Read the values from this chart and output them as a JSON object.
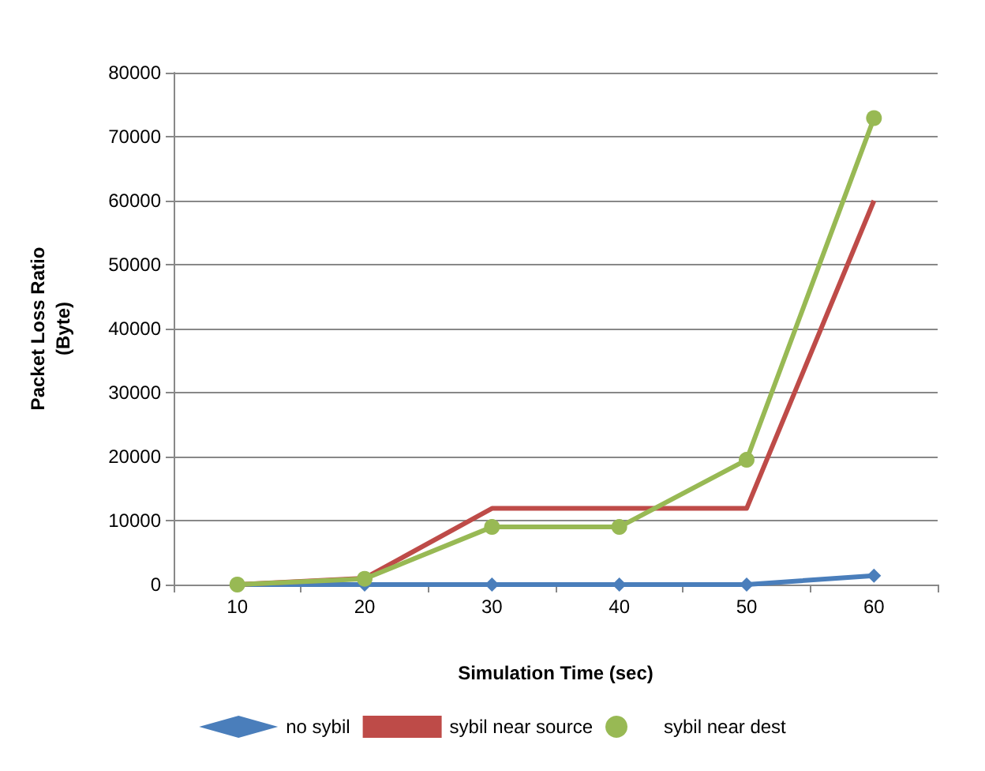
{
  "chart_data": {
    "type": "line",
    "xlabel": "Simulation Time (sec)",
    "ylabel": "Packet Loss Ratio\n(Byte)",
    "categories": [
      "10",
      "20",
      "30",
      "40",
      "50",
      "60"
    ],
    "series": [
      {
        "name": "no sybil",
        "color": "#4a7ebb",
        "marker": "diamond",
        "values": [
          0,
          0,
          0,
          0,
          0,
          1400
        ]
      },
      {
        "name": "sybil near source",
        "color": "#be4b48",
        "marker": "none",
        "values": [
          0,
          1000,
          11900,
          11900,
          11900,
          60000
        ]
      },
      {
        "name": "sybil near dest",
        "color": "#98b954",
        "marker": "circle",
        "values": [
          0,
          900,
          9000,
          9000,
          19500,
          72900
        ]
      }
    ],
    "ylim": [
      0,
      80000
    ],
    "yticks": [
      0,
      10000,
      20000,
      30000,
      40000,
      50000,
      60000,
      70000,
      80000
    ],
    "grid": "y",
    "legend": "bottom"
  }
}
